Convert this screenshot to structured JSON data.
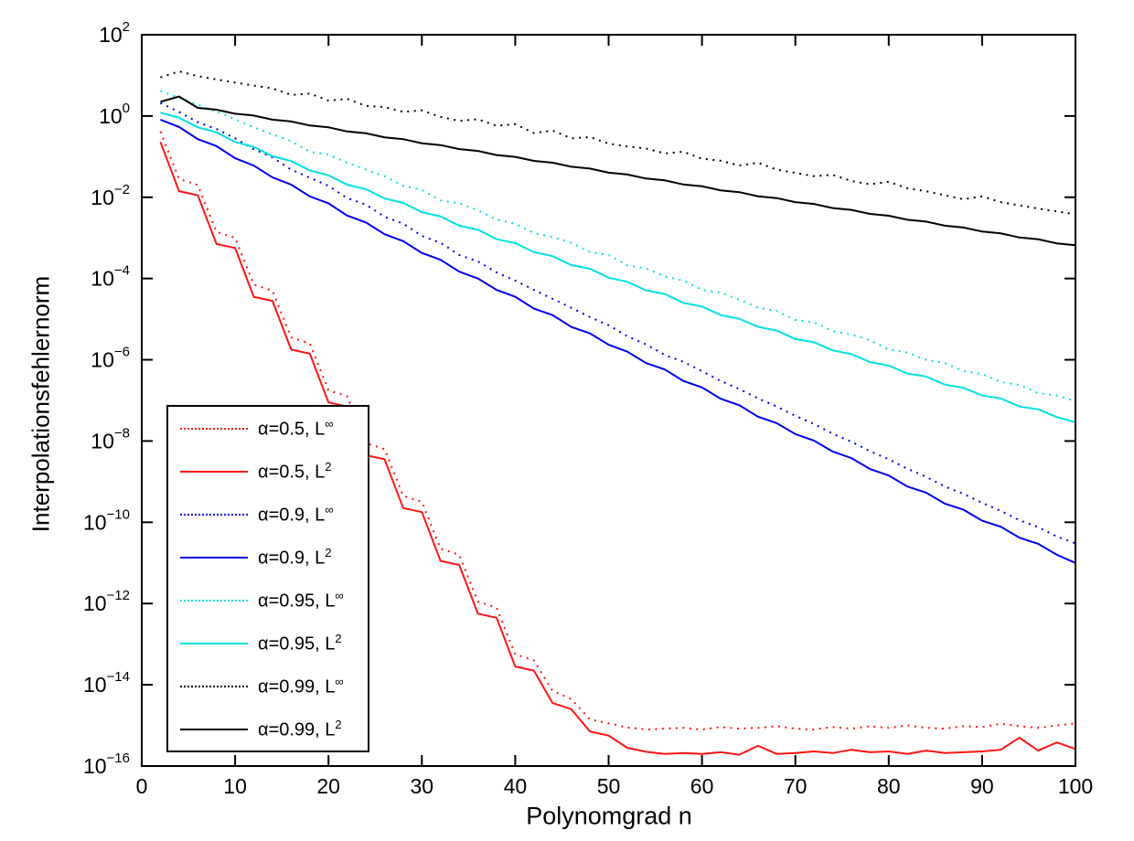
{
  "chart_data": {
    "type": "line",
    "title": "",
    "xlabel": "Polynomgrad n",
    "ylabel": "Interpolationsfehlernorm",
    "grid": false,
    "legend_position": "inside-bottom-left",
    "x_axis": {
      "min": 0,
      "max": 100,
      "ticks": [
        0,
        10,
        20,
        30,
        40,
        50,
        60,
        70,
        80,
        90,
        100
      ]
    },
    "y_axis": {
      "scale": "log10",
      "min_exp": -16,
      "max_exp": 2,
      "tick_base": "10",
      "tick_exponents": [
        2,
        0,
        -2,
        -4,
        -6,
        -8,
        -10,
        -12,
        -14,
        -16
      ]
    },
    "x": [
      2,
      4,
      6,
      8,
      10,
      12,
      14,
      16,
      18,
      20,
      22,
      24,
      26,
      28,
      30,
      32,
      34,
      36,
      38,
      40,
      42,
      44,
      46,
      48,
      50,
      52,
      54,
      56,
      58,
      60,
      62,
      64,
      66,
      68,
      70,
      72,
      74,
      76,
      78,
      80,
      82,
      84,
      86,
      88,
      90,
      92,
      94,
      96,
      98,
      100
    ],
    "series": [
      {
        "id": "alpha-0.5-linf",
        "name": "α=0.5, L∞",
        "legend_base": "α=0.5, L",
        "legend_sup": "∞",
        "color": "#ff1414",
        "style": "dotted",
        "log10_values": [
          -0.38,
          -1.55,
          -1.7,
          -2.85,
          -3.0,
          -4.15,
          -4.3,
          -5.45,
          -5.6,
          -6.75,
          -6.9,
          -8.05,
          -8.2,
          -9.35,
          -9.5,
          -10.65,
          -10.8,
          -11.95,
          -12.1,
          -13.25,
          -13.4,
          -14.15,
          -14.35,
          -14.85,
          -14.95,
          -15.05,
          -15.1,
          -15.08,
          -15.06,
          -15.1,
          -15.04,
          -15.08,
          -15.06,
          -15.02,
          -15.08,
          -15.1,
          -15.04,
          -15.08,
          -15.02,
          -15.06,
          -15.0,
          -15.06,
          -15.08,
          -15.02,
          -15.04,
          -14.96,
          -15.02,
          -15.06,
          -15.0,
          -14.95
        ]
      },
      {
        "id": "alpha-0.5-l2",
        "name": "α=0.5, L2",
        "legend_base": "α=0.5, L",
        "legend_sup": "2",
        "color": "#ff1414",
        "style": "solid",
        "log10_values": [
          -0.64,
          -1.85,
          -1.95,
          -3.15,
          -3.25,
          -4.45,
          -4.55,
          -5.75,
          -5.85,
          -7.05,
          -7.15,
          -8.35,
          -8.45,
          -9.65,
          -9.75,
          -10.95,
          -11.05,
          -12.25,
          -12.35,
          -13.55,
          -13.65,
          -14.45,
          -14.6,
          -15.15,
          -15.25,
          -15.55,
          -15.65,
          -15.7,
          -15.68,
          -15.7,
          -15.66,
          -15.72,
          -15.5,
          -15.7,
          -15.68,
          -15.64,
          -15.68,
          -15.6,
          -15.66,
          -15.64,
          -15.7,
          -15.62,
          -15.68,
          -15.66,
          -15.64,
          -15.6,
          -15.3,
          -15.62,
          -15.42,
          -15.58
        ]
      },
      {
        "id": "alpha-0.9-linf",
        "name": "α=0.9, L∞",
        "legend_base": "α=0.9, L",
        "legend_sup": "∞",
        "color": "#0000ee",
        "style": "dotted",
        "log10_values": [
          0.32,
          0.1,
          -0.15,
          -0.32,
          -0.55,
          -0.82,
          -1.02,
          -1.32,
          -1.52,
          -1.72,
          -2.02,
          -2.18,
          -2.48,
          -2.65,
          -2.95,
          -3.12,
          -3.42,
          -3.58,
          -3.85,
          -4.05,
          -4.28,
          -4.5,
          -4.72,
          -4.95,
          -5.15,
          -5.42,
          -5.62,
          -5.88,
          -6.05,
          -6.28,
          -6.52,
          -6.72,
          -6.95,
          -7.15,
          -7.38,
          -7.58,
          -7.82,
          -8.02,
          -8.25,
          -8.45,
          -8.68,
          -8.88,
          -9.12,
          -9.3,
          -9.52,
          -9.72,
          -9.95,
          -10.12,
          -10.35,
          -10.52
        ]
      },
      {
        "id": "alpha-0.9-l2",
        "name": "α=0.9, L2",
        "legend_base": "α=0.9, L",
        "legend_sup": "2",
        "color": "#0000ee",
        "style": "solid",
        "log10_values": [
          -0.09,
          -0.27,
          -0.57,
          -0.74,
          -1.04,
          -1.22,
          -1.51,
          -1.69,
          -1.98,
          -2.15,
          -2.45,
          -2.62,
          -2.91,
          -3.08,
          -3.37,
          -3.54,
          -3.83,
          -4.0,
          -4.28,
          -4.45,
          -4.74,
          -4.9,
          -5.19,
          -5.35,
          -5.63,
          -5.8,
          -6.08,
          -6.24,
          -6.52,
          -6.68,
          -6.96,
          -7.12,
          -7.4,
          -7.56,
          -7.83,
          -7.99,
          -8.26,
          -8.42,
          -8.69,
          -8.85,
          -9.12,
          -9.27,
          -9.54,
          -9.69,
          -9.96,
          -10.11,
          -10.38,
          -10.53,
          -10.8,
          -11.0
        ]
      },
      {
        "id": "alpha-0.95-linf",
        "name": "α=0.95, L∞",
        "legend_base": "α=0.95, L",
        "legend_sup": "∞",
        "color": "#00e0e0",
        "style": "dotted",
        "log10_values": [
          0.62,
          0.45,
          0.28,
          0.1,
          -0.08,
          -0.28,
          -0.45,
          -0.62,
          -0.88,
          -0.95,
          -1.15,
          -1.32,
          -1.48,
          -1.72,
          -1.82,
          -2.08,
          -2.15,
          -2.32,
          -2.55,
          -2.65,
          -2.88,
          -2.98,
          -3.12,
          -3.35,
          -3.42,
          -3.68,
          -3.75,
          -3.95,
          -4.05,
          -4.28,
          -4.35,
          -4.52,
          -4.72,
          -4.8,
          -5.02,
          -5.08,
          -5.3,
          -5.38,
          -5.52,
          -5.75,
          -5.82,
          -6.0,
          -6.08,
          -6.28,
          -6.35,
          -6.55,
          -6.62,
          -6.82,
          -6.88,
          -7.02
        ]
      },
      {
        "id": "alpha-0.95-l2",
        "name": "α=0.95, L2",
        "legend_base": "α=0.95, L",
        "legend_sup": "2",
        "color": "#00e0e0",
        "style": "solid",
        "log10_values": [
          0.08,
          -0.04,
          -0.28,
          -0.4,
          -0.64,
          -0.76,
          -0.99,
          -1.11,
          -1.34,
          -1.46,
          -1.69,
          -1.8,
          -2.03,
          -2.14,
          -2.37,
          -2.47,
          -2.7,
          -2.8,
          -3.03,
          -3.13,
          -3.35,
          -3.45,
          -3.67,
          -3.76,
          -3.98,
          -4.08,
          -4.29,
          -4.38,
          -4.6,
          -4.69,
          -4.9,
          -4.99,
          -5.19,
          -5.28,
          -5.49,
          -5.57,
          -5.77,
          -5.86,
          -6.06,
          -6.14,
          -6.34,
          -6.41,
          -6.61,
          -6.69,
          -6.88,
          -6.95,
          -7.15,
          -7.22,
          -7.41,
          -7.54
        ]
      },
      {
        "id": "alpha-0.99-linf",
        "name": "α=0.99, L∞",
        "legend_base": "α=0.99, L",
        "legend_sup": "∞",
        "color": "#000000",
        "style": "dotted",
        "log10_values": [
          0.95,
          1.1,
          0.98,
          0.9,
          0.82,
          0.75,
          0.68,
          0.52,
          0.55,
          0.38,
          0.42,
          0.25,
          0.22,
          0.1,
          0.14,
          -0.02,
          -0.12,
          -0.08,
          -0.24,
          -0.2,
          -0.42,
          -0.36,
          -0.55,
          -0.52,
          -0.68,
          -0.75,
          -0.8,
          -0.92,
          -0.88,
          -1.05,
          -1.1,
          -1.22,
          -1.15,
          -1.32,
          -1.4,
          -1.48,
          -1.45,
          -1.6,
          -1.68,
          -1.62,
          -1.78,
          -1.85,
          -1.95,
          -2.05,
          -1.98,
          -2.12,
          -2.2,
          -2.28,
          -2.35,
          -2.42
        ]
      },
      {
        "id": "alpha-0.99-l2",
        "name": "α=0.99, L2",
        "legend_base": "α=0.99, L",
        "legend_sup": "2",
        "color": "#000000",
        "style": "solid",
        "log10_values": [
          0.35,
          0.48,
          0.2,
          0.155,
          0.055,
          0.01,
          -0.09,
          -0.135,
          -0.235,
          -0.28,
          -0.38,
          -0.425,
          -0.525,
          -0.57,
          -0.67,
          -0.715,
          -0.815,
          -0.86,
          -0.96,
          -1.005,
          -1.105,
          -1.15,
          -1.25,
          -1.295,
          -1.395,
          -1.44,
          -1.54,
          -1.585,
          -1.685,
          -1.73,
          -1.83,
          -1.875,
          -1.975,
          -2.02,
          -2.12,
          -2.165,
          -2.265,
          -2.31,
          -2.41,
          -2.455,
          -2.555,
          -2.6,
          -2.7,
          -2.745,
          -2.845,
          -2.89,
          -2.99,
          -3.035,
          -3.135,
          -3.18
        ]
      }
    ]
  }
}
